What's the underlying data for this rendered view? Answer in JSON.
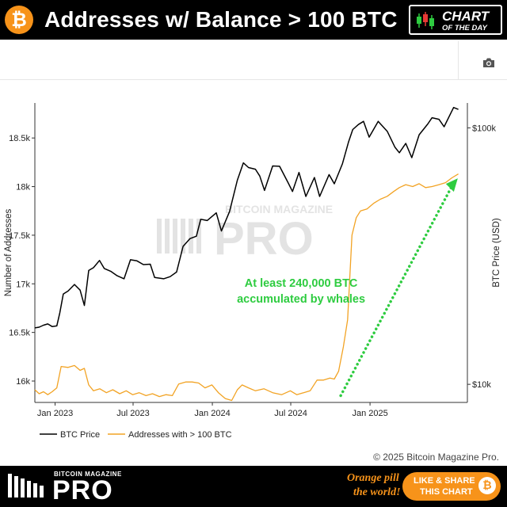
{
  "header": {
    "title": "Addresses w/ Balance > 100 BTC",
    "badge_line1": "CHART",
    "badge_line2": "OF THE DAY",
    "coin_glyph": "₿"
  },
  "colors": {
    "brand_orange": "#f7931a",
    "btc_line": "#000000",
    "addresses_line": "#f2a324",
    "annotation": "#2ecc40"
  },
  "watermark": {
    "line1": "BITCOIN MAGAZINE",
    "line2": "PRO"
  },
  "chart_data": {
    "type": "line",
    "xlim": [
      "2022-11-15",
      "2025-08-15"
    ],
    "x_ticks": [
      {
        "date": "2023-01-01",
        "label": "Jan 2023"
      },
      {
        "date": "2023-07-01",
        "label": "Jul 2023"
      },
      {
        "date": "2024-01-01",
        "label": "Jan 2024"
      },
      {
        "date": "2024-07-01",
        "label": "Jul 2024"
      },
      {
        "date": "2025-01-01",
        "label": "Jan 2025"
      }
    ],
    "y_left": {
      "label": "Number of Addresses",
      "ylim": [
        15780,
        18860
      ],
      "ticks": [
        16000,
        16500,
        17000,
        17500,
        18000,
        18500
      ],
      "tick_labels": [
        "16k",
        "16.5k",
        "17k",
        "17.5k",
        "18k",
        "18.5k"
      ]
    },
    "y_right": {
      "label": "BTC Price (USD)",
      "scale": "log",
      "ylim": [
        8500,
        125000
      ],
      "ticks": [
        10000,
        100000
      ],
      "tick_labels": [
        "$10k",
        "$100k"
      ]
    },
    "series": [
      {
        "name": "BTC Price",
        "axis": "right",
        "color": "#000000",
        "points": [
          [
            "2022-11-15",
            16600
          ],
          [
            "2022-11-25",
            16700
          ],
          [
            "2022-12-05",
            17000
          ],
          [
            "2022-12-15",
            17200
          ],
          [
            "2022-12-25",
            16800
          ],
          [
            "2023-01-05",
            16900
          ],
          [
            "2023-01-12",
            19000
          ],
          [
            "2023-01-20",
            22500
          ],
          [
            "2023-01-31",
            23100
          ],
          [
            "2023-02-15",
            24500
          ],
          [
            "2023-02-28",
            23300
          ],
          [
            "2023-03-10",
            20300
          ],
          [
            "2023-03-20",
            27800
          ],
          [
            "2023-03-31",
            28500
          ],
          [
            "2023-04-14",
            30400
          ],
          [
            "2023-04-25",
            28300
          ],
          [
            "2023-05-10",
            27600
          ],
          [
            "2023-05-25",
            26500
          ],
          [
            "2023-06-10",
            25800
          ],
          [
            "2023-06-25",
            30600
          ],
          [
            "2023-07-10",
            30300
          ],
          [
            "2023-07-25",
            29300
          ],
          [
            "2023-08-10",
            29400
          ],
          [
            "2023-08-20",
            26100
          ],
          [
            "2023-09-10",
            25800
          ],
          [
            "2023-09-25",
            26300
          ],
          [
            "2023-10-10",
            27400
          ],
          [
            "2023-10-25",
            34500
          ],
          [
            "2023-11-10",
            37000
          ],
          [
            "2023-11-25",
            37800
          ],
          [
            "2023-12-05",
            44000
          ],
          [
            "2023-12-20",
            43500
          ],
          [
            "2024-01-10",
            46600
          ],
          [
            "2024-01-22",
            39600
          ],
          [
            "2024-02-10",
            47200
          ],
          [
            "2024-02-28",
            62500
          ],
          [
            "2024-03-13",
            73000
          ],
          [
            "2024-03-25",
            70000
          ],
          [
            "2024-04-10",
            69000
          ],
          [
            "2024-04-20",
            64900
          ],
          [
            "2024-05-01",
            57000
          ],
          [
            "2024-05-20",
            71000
          ],
          [
            "2024-06-05",
            70800
          ],
          [
            "2024-06-25",
            61000
          ],
          [
            "2024-07-05",
            56500
          ],
          [
            "2024-07-20",
            67000
          ],
          [
            "2024-08-05",
            54000
          ],
          [
            "2024-08-25",
            64000
          ],
          [
            "2024-09-06",
            54000
          ],
          [
            "2024-09-28",
            65700
          ],
          [
            "2024-10-10",
            60500
          ],
          [
            "2024-10-29",
            72500
          ],
          [
            "2024-11-12",
            88000
          ],
          [
            "2024-11-22",
            98500
          ],
          [
            "2024-12-05",
            103000
          ],
          [
            "2024-12-17",
            106000
          ],
          [
            "2024-12-30",
            92000
          ],
          [
            "2025-01-20",
            106000
          ],
          [
            "2025-02-10",
            97000
          ],
          [
            "2025-02-28",
            84000
          ],
          [
            "2025-03-10",
            80000
          ],
          [
            "2025-03-25",
            87000
          ],
          [
            "2025-04-08",
            76500
          ],
          [
            "2025-04-25",
            94000
          ],
          [
            "2025-05-15",
            103500
          ],
          [
            "2025-05-25",
            109500
          ],
          [
            "2025-06-10",
            108000
          ],
          [
            "2025-06-22",
            101000
          ],
          [
            "2025-07-14",
            120000
          ],
          [
            "2025-07-25",
            118000
          ]
        ]
      },
      {
        "name": "Addresses with > 100 BTC",
        "axis": "left",
        "color": "#f2a324",
        "points": [
          [
            "2022-11-15",
            15910
          ],
          [
            "2022-11-25",
            15870
          ],
          [
            "2022-12-05",
            15890
          ],
          [
            "2022-12-15",
            15860
          ],
          [
            "2022-12-25",
            15890
          ],
          [
            "2023-01-05",
            15930
          ],
          [
            "2023-01-15",
            16150
          ],
          [
            "2023-01-31",
            16140
          ],
          [
            "2023-02-15",
            16160
          ],
          [
            "2023-02-28",
            16110
          ],
          [
            "2023-03-10",
            16130
          ],
          [
            "2023-03-20",
            15960
          ],
          [
            "2023-03-31",
            15900
          ],
          [
            "2023-04-15",
            15920
          ],
          [
            "2023-04-30",
            15880
          ],
          [
            "2023-05-15",
            15910
          ],
          [
            "2023-05-31",
            15870
          ],
          [
            "2023-06-15",
            15900
          ],
          [
            "2023-06-30",
            15860
          ],
          [
            "2023-07-15",
            15880
          ],
          [
            "2023-07-31",
            15850
          ],
          [
            "2023-08-15",
            15870
          ],
          [
            "2023-08-31",
            15840
          ],
          [
            "2023-09-15",
            15860
          ],
          [
            "2023-09-30",
            15850
          ],
          [
            "2023-10-15",
            15970
          ],
          [
            "2023-10-31",
            15990
          ],
          [
            "2023-11-15",
            15990
          ],
          [
            "2023-11-30",
            15980
          ],
          [
            "2023-12-15",
            15930
          ],
          [
            "2023-12-31",
            15960
          ],
          [
            "2024-01-15",
            15880
          ],
          [
            "2024-01-31",
            15820
          ],
          [
            "2024-02-15",
            15800
          ],
          [
            "2024-02-28",
            15910
          ],
          [
            "2024-03-10",
            15960
          ],
          [
            "2024-03-25",
            15930
          ],
          [
            "2024-04-10",
            15900
          ],
          [
            "2024-04-30",
            15920
          ],
          [
            "2024-05-20",
            15880
          ],
          [
            "2024-06-10",
            15860
          ],
          [
            "2024-06-30",
            15900
          ],
          [
            "2024-07-15",
            15860
          ],
          [
            "2024-07-31",
            15880
          ],
          [
            "2024-08-15",
            15900
          ],
          [
            "2024-08-31",
            16010
          ],
          [
            "2024-09-15",
            16010
          ],
          [
            "2024-09-30",
            16030
          ],
          [
            "2024-10-10",
            16020
          ],
          [
            "2024-10-20",
            16100
          ],
          [
            "2024-10-31",
            16350
          ],
          [
            "2024-11-10",
            16630
          ],
          [
            "2024-11-20",
            17500
          ],
          [
            "2024-11-30",
            17680
          ],
          [
            "2024-12-10",
            17750
          ],
          [
            "2024-12-25",
            17770
          ],
          [
            "2025-01-10",
            17830
          ],
          [
            "2025-01-25",
            17870
          ],
          [
            "2025-02-10",
            17900
          ],
          [
            "2025-02-25",
            17950
          ],
          [
            "2025-03-10",
            17990
          ],
          [
            "2025-03-25",
            18020
          ],
          [
            "2025-04-10",
            18000
          ],
          [
            "2025-04-25",
            18030
          ],
          [
            "2025-05-10",
            17990
          ],
          [
            "2025-05-25",
            18000
          ],
          [
            "2025-06-10",
            18020
          ],
          [
            "2025-06-25",
            18040
          ],
          [
            "2025-07-10",
            18090
          ],
          [
            "2025-07-25",
            18130
          ]
        ]
      }
    ],
    "annotation": {
      "lines": [
        "At least 240,000 BTC",
        "accumulated by whales"
      ],
      "color": "#2ecc40"
    },
    "legend_position": "bottom-left"
  },
  "copyright": "© 2025 Bitcoin Magazine Pro.",
  "footer": {
    "brand_small": "BITCOIN MAGAZINE",
    "brand_big": "PRO",
    "tagline_1": "Orange pill",
    "tagline_2": "the world!",
    "share_line1": "LIKE & SHARE",
    "share_line2": "THIS CHART",
    "coin_glyph": "₿"
  }
}
